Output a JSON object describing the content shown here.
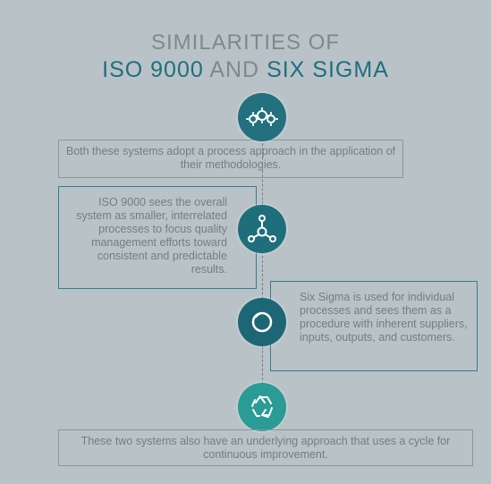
{
  "title": {
    "line1": "SIMILARITIES OF",
    "part_a": "ISO 9000",
    "part_and": " AND ",
    "part_b": "SIX SIGMA"
  },
  "steps": [
    {
      "text": "Both these systems adopt a process approach in the application of their methodologies.",
      "icon": "gears-icon"
    },
    {
      "text": "ISO 9000 sees the overall system as smaller, interrelated processes to focus quality management efforts toward consistent and predictable results.",
      "icon": "network-icon"
    },
    {
      "text": "Six Sigma is used for individual processes and sees them as a procedure with inherent suppliers, inputs, outputs, and customers.",
      "icon": "circle-icon"
    },
    {
      "text": "These two systems also have an underlying approach that uses a cycle for continuous improvement.",
      "icon": "recycle-icon"
    }
  ],
  "colors": {
    "teal": "#1e6f80",
    "green_teal": "#2a9b95",
    "grey_text": "#747e82",
    "background": "#b9c3c7"
  }
}
